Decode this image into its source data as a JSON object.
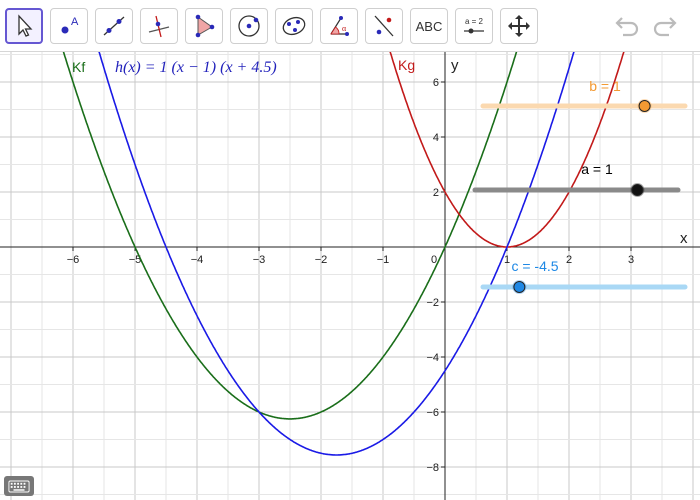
{
  "toolbar": {
    "tools": [
      {
        "name": "move-tool",
        "active": true
      },
      {
        "name": "point-tool",
        "label": "A"
      },
      {
        "name": "line-tool"
      },
      {
        "name": "perpendicular-line-tool"
      },
      {
        "name": "polygon-tool"
      },
      {
        "name": "circle-center-point-tool"
      },
      {
        "name": "conic-five-points-tool"
      },
      {
        "name": "angle-tool",
        "label": "α"
      },
      {
        "name": "reflect-tool"
      },
      {
        "name": "text-tool",
        "label": "ABC"
      },
      {
        "name": "slider-tool",
        "label": "a = 2"
      },
      {
        "name": "move-graphics-view-tool"
      }
    ],
    "undo_icon": "undo-icon",
    "redo_icon": "redo-icon"
  },
  "graphics": {
    "axes": {
      "x_label": "x",
      "y_label": "y",
      "x_range": [
        -7,
        4
      ],
      "y_range": [
        -9,
        7
      ],
      "x_ticks": [
        "−6",
        "−5",
        "−4",
        "−3",
        "−2",
        "−1",
        "0",
        "1",
        "2",
        "3"
      ],
      "y_ticks": [
        "6",
        "4",
        "2",
        "−2",
        "−4",
        "−6",
        "−8"
      ],
      "grid": true
    },
    "function_label": "h(x)  =  1  (x − 1)  (x + 4.5)",
    "curves": [
      {
        "name": "Kf",
        "color": "#1a6e1a",
        "a": 1,
        "b": 5,
        "c": 0
      },
      {
        "name": "Kg",
        "color": "#c21a1a",
        "a": 2,
        "b": -4,
        "c": 2
      },
      {
        "name": "h",
        "color": "#1a1ae6",
        "a": 1,
        "b": 3.5,
        "c": -4.5
      }
    ],
    "sliders": [
      {
        "label": "b = 1",
        "value": 1,
        "min": -5,
        "max": 5,
        "fraction": 0.8,
        "track_color": "#fbd9b0",
        "knob_color": "#f39a33",
        "label_color": "#f39a33"
      },
      {
        "label": "a = 1",
        "value": 1,
        "min": -5,
        "max": 5,
        "fraction": 0.8,
        "track_color": "#8a8a8a",
        "knob_color": "#111111",
        "label_color": "#000000"
      },
      {
        "label": "c = -4.5",
        "value": -4.5,
        "min": -5,
        "max": 5,
        "fraction": 0.18,
        "track_color": "#a9d8f5",
        "knob_color": "#1e88e5",
        "label_color": "#1e88e5"
      }
    ]
  },
  "keyboard_icon": "keyboard-icon"
}
